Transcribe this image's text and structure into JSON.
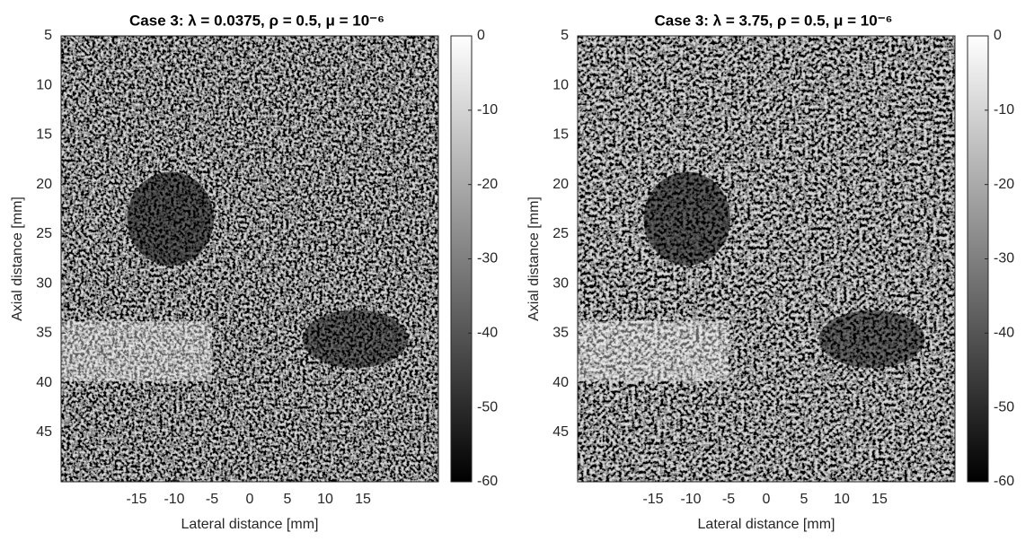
{
  "chart_data": [
    {
      "type": "image",
      "title": "Case 3: λ = 0.0375, ρ = 0.5, μ = 10⁻⁶",
      "xlabel": "Lateral distance [mm]",
      "ylabel": "Axial distance [mm]",
      "xlim": [
        -25,
        25
      ],
      "ylim": [
        5,
        50
      ],
      "y_reversed": true,
      "xticks": [
        -15,
        -10,
        -5,
        0,
        5,
        10,
        15
      ],
      "yticks": [
        5,
        10,
        15,
        20,
        25,
        30,
        35,
        40,
        45
      ],
      "colormap": "gray",
      "colorbar": {
        "clim": [
          -60,
          0
        ],
        "ticks": [
          0,
          -10,
          -20,
          -30,
          -40,
          -50,
          -60
        ]
      }
    },
    {
      "type": "image",
      "title": "Case 3: λ = 3.75, ρ = 0.5, μ = 10⁻⁶",
      "xlabel": "Lateral distance [mm]",
      "ylabel": "Axial distance [mm]",
      "xlim": [
        -25,
        25
      ],
      "ylim": [
        5,
        50
      ],
      "y_reversed": true,
      "xticks": [
        -15,
        -10,
        -5,
        0,
        5,
        10,
        15
      ],
      "yticks": [
        5,
        10,
        15,
        20,
        25,
        30,
        35,
        40,
        45
      ],
      "colormap": "gray",
      "colorbar": {
        "clim": [
          -60,
          0
        ],
        "ticks": [
          0,
          -10,
          -20,
          -30,
          -40,
          -50,
          -60
        ]
      }
    }
  ]
}
